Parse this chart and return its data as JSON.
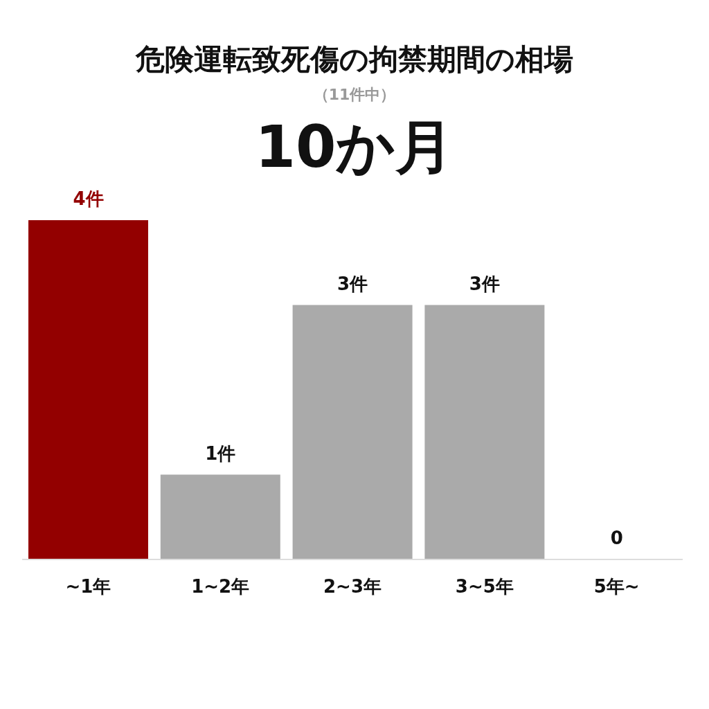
{
  "chart_data": {
    "type": "bar",
    "title": "危険運転致死傷の拘禁期間の相場",
    "subtitle": "（11件中）",
    "annotations": [
      "10か月"
    ],
    "categories": [
      "~1年",
      "1~2年",
      "2~3年",
      "3~5年",
      "5年~"
    ],
    "values": [
      4,
      1,
      3,
      3,
      0
    ],
    "colors": [
      "#930000",
      "#aaaaaa",
      "#aaaaaa",
      "#aaaaaa",
      "#aaaaaa"
    ],
    "value_labels": [
      "4件",
      "1件",
      "3件",
      "3件",
      "0"
    ],
    "grid": false,
    "legend": false
  }
}
